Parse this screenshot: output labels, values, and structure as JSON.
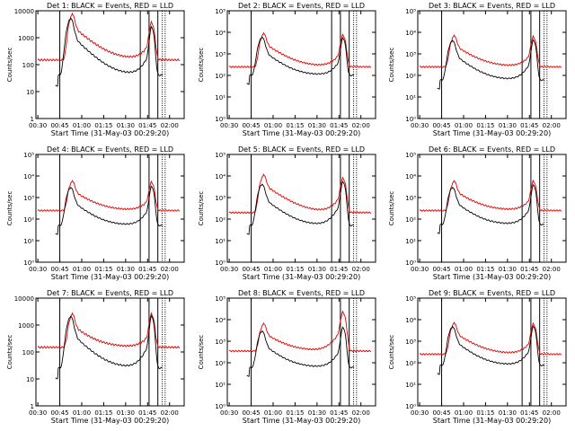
{
  "colors": {
    "events": "#000000",
    "lld": "#e00000",
    "axis": "#000000"
  },
  "chart_data": [
    {
      "type": "line",
      "title": "Det 1: BLACK = Events, RED = LLD",
      "xlabel": "Start Time (31-May-03 00:29:20)",
      "ylabel": "Counts/sec",
      "yscale": "log",
      "ylim": [
        1,
        10000
      ],
      "y_ticks": [
        "1",
        "10",
        "100",
        "1000",
        "10000"
      ],
      "x_ticks": [
        "00:30",
        "00:45",
        "01:00",
        "01:15",
        "01:30",
        "01:45",
        "02:00"
      ],
      "lld_peaks": [
        6000,
        3200
      ],
      "ev_peaks": [
        4500,
        2300
      ],
      "lld_base": 150,
      "ev_base": 80
    },
    {
      "type": "line",
      "title": "Det 2: BLACK = Events, RED = LLD",
      "xlabel": "Start Time (31-May-03 00:29:20)",
      "ylabel": "Counts/sec",
      "yscale": "log",
      "ylim": [
        1,
        100000
      ],
      "y_ticks": [
        "10⁰",
        "10¹",
        "10²",
        "10³",
        "10⁴",
        "10⁵"
      ],
      "x_ticks": [
        "00:30",
        "00:45",
        "01:00",
        "01:15",
        "01:30",
        "01:45",
        "02:00"
      ],
      "lld_peaks": [
        7000,
        6500
      ],
      "ev_peaks": [
        5000,
        5000
      ],
      "lld_base": 250,
      "ev_base": 200
    },
    {
      "type": "line",
      "title": "Det 3: BLACK = Events, RED = LLD",
      "xlabel": "Start Time (31-May-03 00:29:20)",
      "ylabel": "Counts/sec",
      "yscale": "log",
      "ylim": [
        1,
        100000
      ],
      "y_ticks": [
        "10⁰",
        "10¹",
        "10²",
        "10³",
        "10⁴",
        "10⁵"
      ],
      "x_ticks": [
        "00:30",
        "00:45",
        "01:00",
        "01:15",
        "01:30",
        "01:45",
        "02:00"
      ],
      "lld_peaks": [
        5500,
        5500
      ],
      "ev_peaks": [
        3500,
        4000
      ],
      "lld_base": 250,
      "ev_base": 120
    },
    {
      "type": "line",
      "title": "Det 4: BLACK = Events, RED = LLD",
      "xlabel": "Start Time (31-May-03 00:29:20)",
      "ylabel": "Counts/sec",
      "yscale": "log",
      "ylim": [
        1,
        100000
      ],
      "y_ticks": [
        "10⁰",
        "10¹",
        "10²",
        "10³",
        "10⁴",
        "10⁵"
      ],
      "x_ticks": [
        "00:30",
        "00:45",
        "01:00",
        "01:15",
        "01:30",
        "01:45",
        "02:00"
      ],
      "lld_peaks": [
        4500,
        4500
      ],
      "ev_peaks": [
        2500,
        3000
      ],
      "lld_base": 250,
      "ev_base": 100
    },
    {
      "type": "line",
      "title": "Det 5: BLACK = Events, RED = LLD",
      "xlabel": "Start Time (31-May-03 00:29:20)",
      "ylabel": "Counts/sec",
      "yscale": "log",
      "ylim": [
        1,
        100000
      ],
      "y_ticks": [
        "10⁰",
        "10¹",
        "10²",
        "10³",
        "10⁴",
        "10⁵"
      ],
      "x_ticks": [
        "00:30",
        "00:45",
        "01:00",
        "01:15",
        "01:30",
        "01:45",
        "02:00"
      ],
      "lld_peaks": [
        9000,
        7000
      ],
      "ev_peaks": [
        3500,
        5000
      ],
      "lld_base": 200,
      "ev_base": 100
    },
    {
      "type": "line",
      "title": "Det 6: BLACK = Events, RED = LLD",
      "xlabel": "Start Time (31-May-03 00:29:20)",
      "ylabel": "Counts/sec",
      "yscale": "log",
      "ylim": [
        1,
        100000
      ],
      "y_ticks": [
        "10⁰",
        "10¹",
        "10²",
        "10³",
        "10⁴",
        "10⁵"
      ],
      "x_ticks": [
        "00:30",
        "00:45",
        "01:00",
        "01:15",
        "01:30",
        "01:45",
        "02:00"
      ],
      "lld_peaks": [
        4500,
        5000
      ],
      "ev_peaks": [
        2500,
        3500
      ],
      "lld_base": 250,
      "ev_base": 110
    },
    {
      "type": "line",
      "title": "Det 7: BLACK = Events, RED = LLD",
      "xlabel": "Start Time (31-May-03 00:29:20)",
      "ylabel": "Counts/sec",
      "yscale": "log",
      "ylim": [
        1,
        10000
      ],
      "y_ticks": [
        "1",
        "10",
        "100",
        "1000",
        "10000"
      ],
      "x_ticks": [
        "00:30",
        "00:45",
        "01:00",
        "01:15",
        "01:30",
        "01:45",
        "02:00"
      ],
      "lld_peaks": [
        2000,
        2200
      ],
      "ev_peaks": [
        1800,
        2000
      ],
      "lld_base": 150,
      "ev_base": 50
    },
    {
      "type": "line",
      "title": "Det 8: BLACK = Events, RED = LLD",
      "xlabel": "Start Time (31-May-03 00:29:20)",
      "ylabel": "Counts/sec",
      "yscale": "log",
      "ylim": [
        1,
        100000
      ],
      "y_ticks": [
        "10⁰",
        "10¹",
        "10²",
        "10³",
        "10⁴",
        "10⁵"
      ],
      "x_ticks": [
        "00:30",
        "00:45",
        "01:00",
        "01:15",
        "01:30",
        "01:45",
        "02:00"
      ],
      "lld_peaks": [
        5000,
        20000
      ],
      "ev_peaks": [
        2500,
        4000
      ],
      "lld_base": 350,
      "ev_base": 120
    },
    {
      "type": "line",
      "title": "Det 9: BLACK = Events, RED = LLD",
      "xlabel": "Start Time (31-May-03 00:29:20)",
      "ylabel": "Counts/sec",
      "yscale": "log",
      "ylim": [
        1,
        100000
      ],
      "y_ticks": [
        "10⁰",
        "10¹",
        "10²",
        "10³",
        "10⁴",
        "10⁵"
      ],
      "x_ticks": [
        "00:30",
        "00:45",
        "01:00",
        "01:15",
        "01:30",
        "01:45",
        "02:00"
      ],
      "lld_peaks": [
        5500,
        5500
      ],
      "ev_peaks": [
        4000,
        4500
      ],
      "lld_base": 250,
      "ev_base": 150
    }
  ]
}
